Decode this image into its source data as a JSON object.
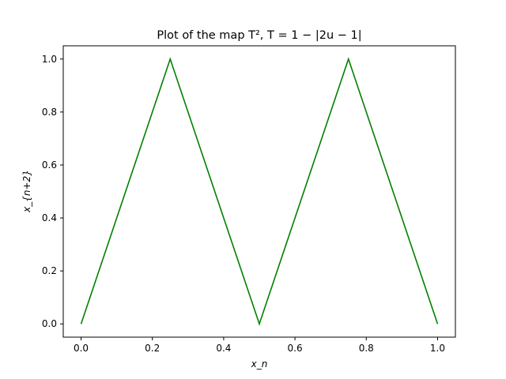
{
  "chart_data": {
    "type": "line",
    "title": "Plot of the map T², T = 1 − |2u − 1|",
    "xlabel": "x_n",
    "ylabel": "x_{n+2}",
    "xlim": [
      -0.05,
      1.05
    ],
    "ylim": [
      -0.05,
      1.05
    ],
    "xticks": [
      "0.0",
      "0.2",
      "0.4",
      "0.6",
      "0.8",
      "1.0"
    ],
    "yticks": [
      "0.0",
      "0.2",
      "0.4",
      "0.6",
      "0.8",
      "1.0"
    ],
    "grid": false,
    "series": [
      {
        "color": "#008000",
        "x": [
          0.0,
          0.25,
          0.5,
          0.75,
          1.0
        ],
        "y": [
          0.0,
          1.0,
          0.0,
          1.0,
          0.0
        ]
      }
    ]
  }
}
